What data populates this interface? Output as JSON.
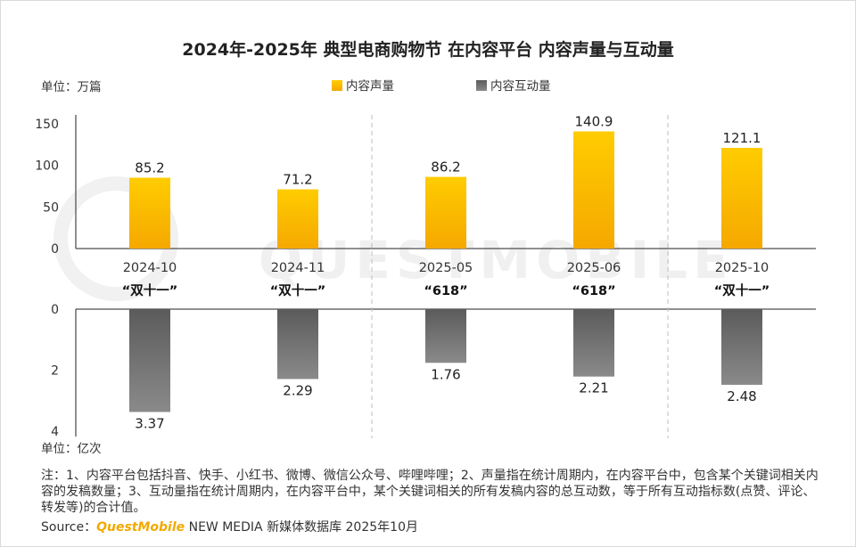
{
  "chart_data": {
    "type": "bar",
    "title": "2024年-2025年 典型电商购物节 在内容平台 内容声量与互动量",
    "categories": [
      "2024-10",
      "2024-11",
      "2025-05",
      "2025-06",
      "2025-10"
    ],
    "festivals": [
      "“双十一”",
      "“双十一”",
      "“618”",
      "“618”",
      "“双十一”"
    ],
    "panels": [
      {
        "unit": "单位：万篇",
        "ylim": [
          0,
          150
        ],
        "ticks": [
          "0",
          "50",
          "100",
          "150"
        ],
        "series": [
          {
            "name": "内容声量",
            "values": [
              85.2,
              71.2,
              86.2,
              140.9,
              121.1
            ],
            "color": "#ffc000"
          }
        ]
      },
      {
        "unit": "单位：亿次",
        "ylim": [
          0,
          4
        ],
        "inverted": true,
        "ticks": [
          "0",
          "2",
          "4"
        ],
        "series": [
          {
            "name": "内容互动量",
            "values": [
              3.37,
              2.29,
              1.76,
              2.21,
              2.48
            ],
            "color": "#6e6e6e"
          }
        ]
      }
    ],
    "value_labels_top": [
      "85.2",
      "71.2",
      "86.2",
      "140.9",
      "121.1"
    ],
    "value_labels_bottom": [
      "3.37",
      "2.29",
      "1.76",
      "2.21",
      "2.48"
    ],
    "legend": [
      "内容声量",
      "内容互动量"
    ],
    "legend_position": "top-center"
  },
  "watermark": "QUESTMOBILE",
  "note": "注：1、内容平台包括抖音、快手、小红书、微博、微信公众号、哔哩哔哩；2、声量指在统计周期内，在内容平台中，包含某个关键词相关内容的发稿数量；3、互动量指在统计周期内，在内容平台中，某个关键词相关的所有发稿内容的总互动数，等于所有互动指标数(点赞、评论、转发等)的合计值。",
  "source": {
    "label": "Source：",
    "brand": "QuestMobile",
    "rest": " NEW MEDIA 新媒体数据库 2025年10月"
  },
  "colors": {
    "accent": "#ffc000",
    "gray": "#6e6e6e"
  }
}
